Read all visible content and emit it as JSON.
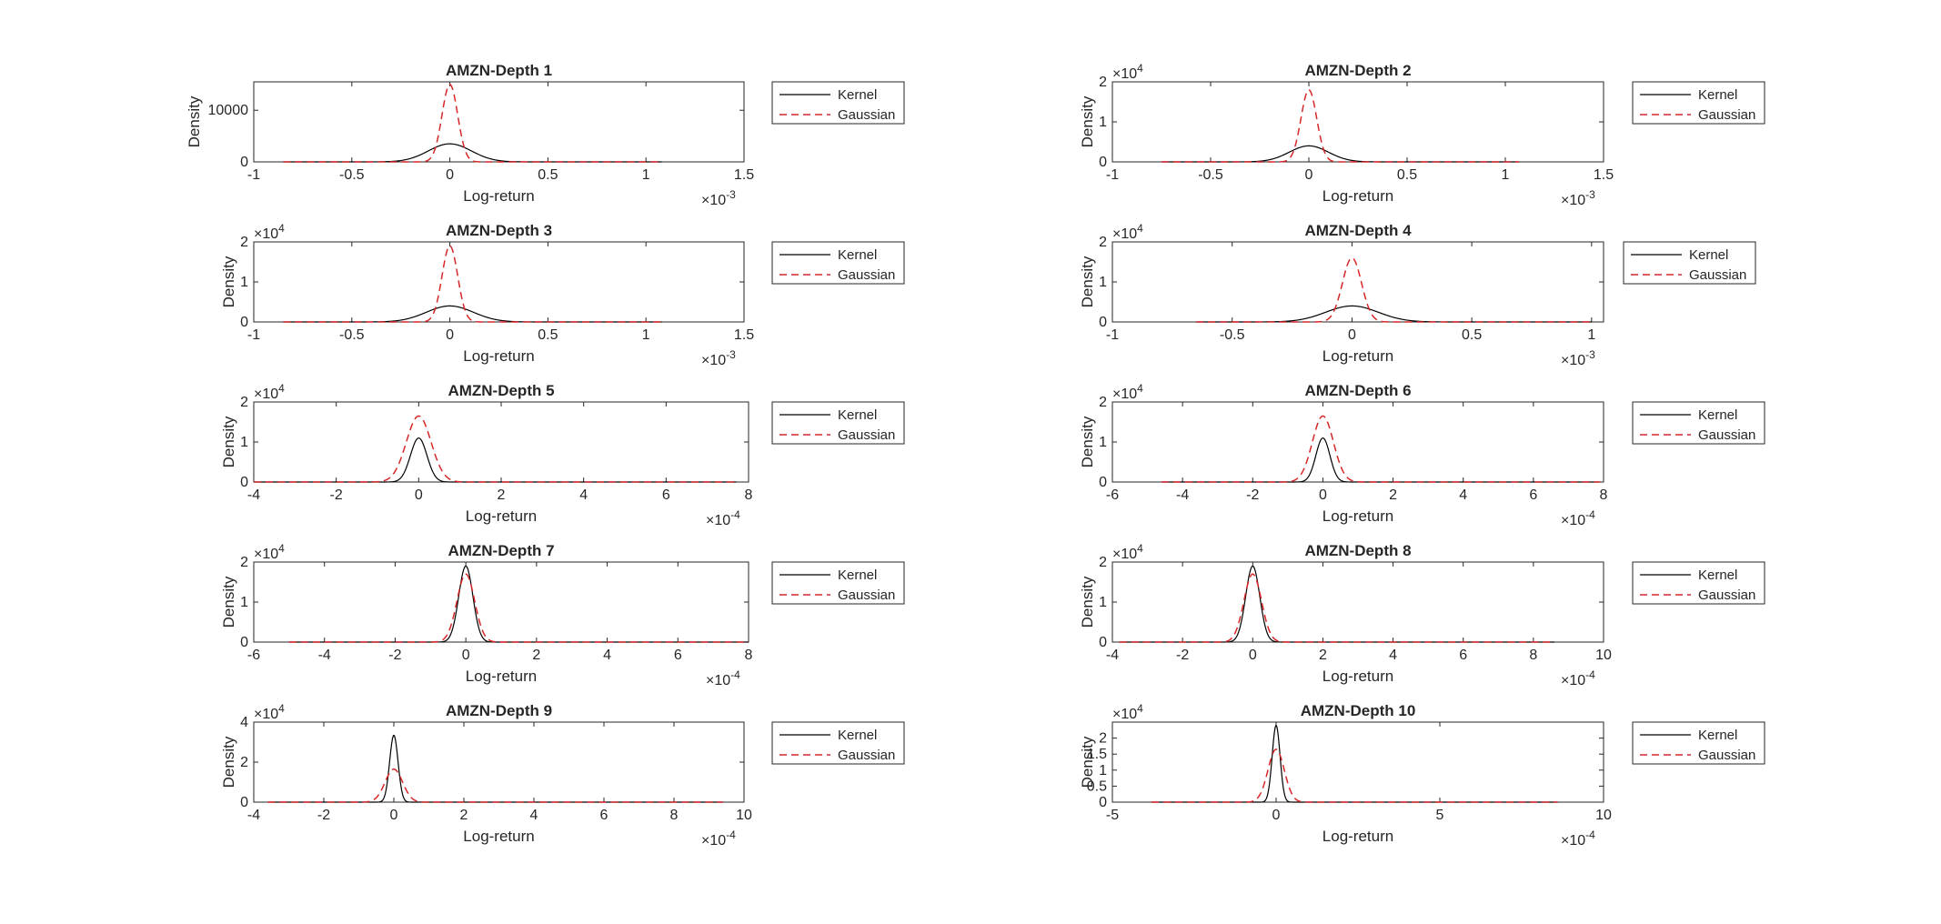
{
  "figure": {
    "background": "#ffffff",
    "kernel_color": "#000000",
    "gaussian_color": "#d62728",
    "axis_color": "#262626"
  },
  "chart_data": [
    {
      "type": "line",
      "title": "AMZN-Depth 1",
      "xlabel": "Log-return",
      "ylabel": "Density",
      "xlim": [
        -1,
        1.5
      ],
      "xticks": [
        "-1",
        "-0.5",
        "0",
        "0.5",
        "1",
        "1.5"
      ],
      "x_exponent": "-3",
      "ylim": [
        0,
        15500
      ],
      "yticks": [
        "0",
        "10000"
      ],
      "ytick_values": [
        0,
        10000
      ],
      "y_exponent": "",
      "x_data_range": [
        -0.85,
        1.08
      ],
      "kernel": {
        "mu": 0,
        "sigma": 0.11,
        "peak": 3500
      },
      "gaussian": {
        "mu": 0,
        "sigma": 0.04,
        "peak": 15000
      },
      "legend": [
        "Kernel",
        "Gaussian"
      ],
      "legend_location": "outside-right"
    },
    {
      "type": "line",
      "title": "AMZN-Depth 2",
      "xlabel": "Log-return",
      "ylabel": "Density",
      "xlim": [
        -1,
        1.5
      ],
      "xticks": [
        "-1",
        "-0.5",
        "0",
        "0.5",
        "1",
        "1.5"
      ],
      "x_exponent": "-3",
      "ylim": [
        0,
        2
      ],
      "yticks": [
        "0",
        "1",
        "2"
      ],
      "ytick_values": [
        0,
        1,
        2
      ],
      "y_exponent": "4",
      "x_data_range": [
        -0.75,
        1.07
      ],
      "kernel": {
        "mu": 0,
        "sigma": 0.1,
        "peak": 0.4
      },
      "gaussian": {
        "mu": 0,
        "sigma": 0.04,
        "peak": 1.8
      },
      "legend": [
        "Kernel",
        "Gaussian"
      ],
      "legend_location": "outside-right"
    },
    {
      "type": "line",
      "title": "AMZN-Depth 3",
      "xlabel": "Log-return",
      "ylabel": "Density",
      "xlim": [
        -1,
        1.5
      ],
      "xticks": [
        "-1",
        "-0.5",
        "0",
        "0.5",
        "1",
        "1.5"
      ],
      "x_exponent": "-3",
      "ylim": [
        0,
        2
      ],
      "yticks": [
        "0",
        "1",
        "2"
      ],
      "ytick_values": [
        0,
        1,
        2
      ],
      "y_exponent": "4",
      "x_data_range": [
        -0.85,
        1.08
      ],
      "kernel": {
        "mu": 0,
        "sigma": 0.12,
        "peak": 0.4
      },
      "gaussian": {
        "mu": 0,
        "sigma": 0.04,
        "peak": 1.9
      },
      "legend": [
        "Kernel",
        "Gaussian"
      ],
      "legend_location": "outside-right"
    },
    {
      "type": "line",
      "title": "AMZN-Depth 4",
      "xlabel": "Log-return",
      "ylabel": "Density",
      "xlim": [
        -1,
        1.05
      ],
      "xticks": [
        "-1",
        "-0.5",
        "0",
        "0.5",
        "1"
      ],
      "x_exponent": "-3",
      "ylim": [
        0,
        2
      ],
      "yticks": [
        "0",
        "1",
        "2"
      ],
      "ytick_values": [
        0,
        1,
        2
      ],
      "y_exponent": "4",
      "x_data_range": [
        -0.65,
        1.0
      ],
      "kernel": {
        "mu": 0,
        "sigma": 0.11,
        "peak": 0.4
      },
      "gaussian": {
        "mu": 0,
        "sigma": 0.04,
        "peak": 1.6
      },
      "legend": [
        "Kernel",
        "Gaussian"
      ],
      "legend_location": "outside-right"
    },
    {
      "type": "line",
      "title": "AMZN-Depth 5",
      "xlabel": "Log-return",
      "ylabel": "Density",
      "xlim": [
        -4,
        8
      ],
      "xticks": [
        "-4",
        "-2",
        "0",
        "2",
        "4",
        "6",
        "8"
      ],
      "x_exponent": "-4",
      "ylim": [
        0,
        2
      ],
      "yticks": [
        "0",
        "1",
        "2"
      ],
      "ytick_values": [
        0,
        1,
        2
      ],
      "y_exponent": "4",
      "x_data_range": [
        -4,
        7.7
      ],
      "kernel": {
        "mu": 0,
        "sigma": 0.2,
        "peak": 1.1
      },
      "gaussian": {
        "mu": 0,
        "sigma": 0.3,
        "peak": 1.65
      },
      "legend": [
        "Kernel",
        "Gaussian"
      ],
      "legend_location": "outside-right"
    },
    {
      "type": "line",
      "title": "AMZN-Depth 6",
      "xlabel": "Log-return",
      "ylabel": "Density",
      "xlim": [
        -6,
        8
      ],
      "xticks": [
        "-6",
        "-4",
        "-2",
        "0",
        "2",
        "4",
        "6",
        "8"
      ],
      "x_exponent": "-4",
      "ylim": [
        0,
        2
      ],
      "yticks": [
        "0",
        "1",
        "2"
      ],
      "ytick_values": [
        0,
        1,
        2
      ],
      "y_exponent": "4",
      "x_data_range": [
        -4.6,
        7.9
      ],
      "kernel": {
        "mu": 0,
        "sigma": 0.2,
        "peak": 1.1
      },
      "gaussian": {
        "mu": 0,
        "sigma": 0.3,
        "peak": 1.65
      },
      "legend": [
        "Kernel",
        "Gaussian"
      ],
      "legend_location": "outside-right"
    },
    {
      "type": "line",
      "title": "AMZN-Depth 7",
      "xlabel": "Log-return",
      "ylabel": "Density",
      "xlim": [
        -6,
        8
      ],
      "xticks": [
        "-6",
        "-4",
        "-2",
        "0",
        "2",
        "4",
        "6",
        "8"
      ],
      "x_exponent": "-4",
      "ylim": [
        0,
        2
      ],
      "yticks": [
        "0",
        "1",
        "2"
      ],
      "ytick_values": [
        0,
        1,
        2
      ],
      "y_exponent": "4",
      "x_data_range": [
        -5,
        8
      ],
      "kernel": {
        "mu": 0,
        "sigma": 0.2,
        "peak": 1.9
      },
      "gaussian": {
        "mu": 0,
        "sigma": 0.25,
        "peak": 1.7
      },
      "legend": [
        "Kernel",
        "Gaussian"
      ],
      "legend_location": "outside-right"
    },
    {
      "type": "line",
      "title": "AMZN-Depth 8",
      "xlabel": "Log-return",
      "ylabel": "Density",
      "xlim": [
        -4,
        10
      ],
      "xticks": [
        "-4",
        "-2",
        "0",
        "2",
        "4",
        "6",
        "8",
        "10"
      ],
      "x_exponent": "-4",
      "ylim": [
        0,
        2
      ],
      "yticks": [
        "0",
        "1",
        "2"
      ],
      "ytick_values": [
        0,
        1,
        2
      ],
      "y_exponent": "4",
      "x_data_range": [
        -3.8,
        8.6
      ],
      "kernel": {
        "mu": 0,
        "sigma": 0.2,
        "peak": 1.9
      },
      "gaussian": {
        "mu": 0,
        "sigma": 0.25,
        "peak": 1.7
      },
      "legend": [
        "Kernel",
        "Gaussian"
      ],
      "legend_location": "outside-right"
    },
    {
      "type": "line",
      "title": "AMZN-Depth 9",
      "xlabel": "Log-return",
      "ylabel": "Density",
      "xlim": [
        -4,
        10
      ],
      "xticks": [
        "-4",
        "-2",
        "0",
        "2",
        "4",
        "6",
        "8",
        "10"
      ],
      "x_exponent": "-4",
      "ylim": [
        0,
        4
      ],
      "yticks": [
        "0",
        "2",
        "4"
      ],
      "ytick_values": [
        0,
        2,
        4
      ],
      "y_exponent": "4",
      "x_data_range": [
        -3.6,
        9.4
      ],
      "kernel": {
        "mu": 0,
        "sigma": 0.12,
        "peak": 3.35
      },
      "gaussian": {
        "mu": 0,
        "sigma": 0.25,
        "peak": 1.65
      },
      "legend": [
        "Kernel",
        "Gaussian"
      ],
      "legend_location": "outside-right"
    },
    {
      "type": "line",
      "title": "AMZN-Depth 10",
      "xlabel": "Log-return",
      "ylabel": "Density",
      "xlim": [
        -5,
        10
      ],
      "xticks": [
        "-5",
        "0",
        "5",
        "10"
      ],
      "x_exponent": "-4",
      "ylim": [
        0,
        2.5
      ],
      "yticks": [
        "0",
        "0.5",
        "1",
        "1.5",
        "2"
      ],
      "ytick_values": [
        0,
        0.5,
        1,
        1.5,
        2
      ],
      "y_exponent": "4",
      "x_data_range": [
        -3.8,
        8.6
      ],
      "kernel": {
        "mu": 0,
        "sigma": 0.12,
        "peak": 2.4
      },
      "gaussian": {
        "mu": 0,
        "sigma": 0.25,
        "peak": 1.65
      },
      "legend": [
        "Kernel",
        "Gaussian"
      ],
      "legend_location": "outside-right"
    }
  ]
}
